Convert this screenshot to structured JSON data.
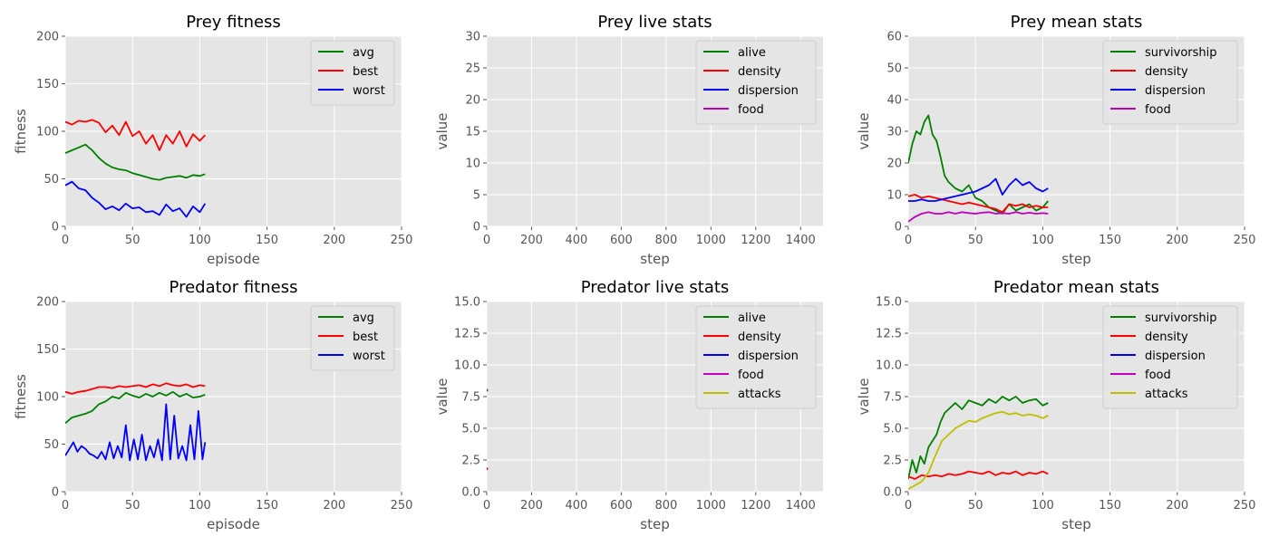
{
  "figure": {
    "background": "#ffffff",
    "plot_background": "#e5e5e5",
    "grid_color": "#ffffff",
    "tick_text_color": "#555555",
    "label_color": "#555555",
    "title_color": "#000000",
    "legend_background": "#e5e5e5",
    "legend_border": "#cccccc"
  },
  "chart_data": [
    {
      "id": "prey-fitness",
      "type": "line",
      "title": "Prey fitness",
      "xlabel": "episode",
      "ylabel": "fitness",
      "xlim": [
        0,
        250
      ],
      "ylim": [
        0,
        200
      ],
      "xticks": [
        "0",
        "50",
        "100",
        "150",
        "200",
        "250"
      ],
      "yticks": [
        "0",
        "50",
        "100",
        "150",
        "200"
      ],
      "grid": true,
      "legend": "top-right",
      "series": [
        {
          "name": "avg",
          "color": "#008000",
          "x": [
            0,
            5,
            10,
            15,
            20,
            25,
            30,
            35,
            40,
            45,
            50,
            55,
            60,
            65,
            70,
            75,
            80,
            85,
            90,
            95,
            100,
            104
          ],
          "y": [
            77,
            80,
            83,
            86,
            80,
            72,
            66,
            62,
            60,
            59,
            56,
            54,
            52,
            50,
            49,
            51,
            52,
            53,
            51,
            54,
            53,
            55
          ]
        },
        {
          "name": "best",
          "color": "#ff0000",
          "x": [
            0,
            5,
            10,
            15,
            20,
            25,
            30,
            35,
            40,
            45,
            50,
            55,
            60,
            65,
            70,
            75,
            80,
            85,
            90,
            95,
            100,
            104
          ],
          "y": [
            110,
            107,
            111,
            110,
            112,
            109,
            99,
            106,
            96,
            110,
            95,
            100,
            87,
            96,
            80,
            96,
            87,
            100,
            84,
            97,
            90,
            96
          ]
        },
        {
          "name": "worst",
          "color": "#0000ff",
          "x": [
            0,
            5,
            10,
            15,
            20,
            25,
            30,
            35,
            40,
            45,
            50,
            55,
            60,
            65,
            70,
            75,
            80,
            85,
            90,
            95,
            100,
            104
          ],
          "y": [
            43,
            47,
            40,
            38,
            30,
            25,
            18,
            21,
            17,
            24,
            19,
            20,
            15,
            16,
            12,
            23,
            16,
            19,
            10,
            21,
            15,
            24
          ]
        }
      ]
    },
    {
      "id": "prey-live-stats",
      "type": "line",
      "title": "Prey live stats",
      "xlabel": "step",
      "ylabel": "value",
      "xlim": [
        0,
        1500
      ],
      "ylim": [
        0,
        30
      ],
      "xticks": [
        "0",
        "200",
        "400",
        "600",
        "800",
        "1000",
        "1200",
        "1400"
      ],
      "yticks": [
        "0",
        "5",
        "10",
        "15",
        "20",
        "25",
        "30"
      ],
      "grid": true,
      "legend": "top-right",
      "series": [
        {
          "name": "alive",
          "color": "#008000",
          "x": [],
          "y": []
        },
        {
          "name": "density",
          "color": "#ff0000",
          "x": [],
          "y": []
        },
        {
          "name": "dispersion",
          "color": "#0000ff",
          "x": [],
          "y": []
        },
        {
          "name": "food",
          "color": "#bf00bf",
          "x": [],
          "y": []
        }
      ]
    },
    {
      "id": "prey-mean-stats",
      "type": "line",
      "title": "Prey mean stats",
      "xlabel": "step",
      "ylabel": "value",
      "xlim": [
        0,
        250
      ],
      "ylim": [
        0,
        60
      ],
      "xticks": [
        "0",
        "50",
        "100",
        "150",
        "200",
        "250"
      ],
      "yticks": [
        "0",
        "10",
        "20",
        "30",
        "40",
        "50",
        "60"
      ],
      "grid": true,
      "legend": "top-right",
      "series": [
        {
          "name": "survivorship",
          "color": "#008000",
          "x": [
            0,
            3,
            6,
            9,
            12,
            15,
            18,
            21,
            24,
            27,
            30,
            35,
            40,
            45,
            50,
            55,
            60,
            65,
            70,
            75,
            80,
            85,
            90,
            95,
            100,
            104
          ],
          "y": [
            20,
            26,
            30,
            29,
            33,
            35,
            29,
            27,
            22,
            16,
            14,
            12,
            11,
            13,
            9,
            8,
            6,
            5,
            4,
            7,
            5,
            6,
            7,
            5,
            6,
            8
          ]
        },
        {
          "name": "density",
          "color": "#ff0000",
          "x": [
            0,
            5,
            10,
            15,
            20,
            25,
            30,
            35,
            40,
            45,
            50,
            55,
            60,
            65,
            70,
            75,
            80,
            85,
            90,
            95,
            100,
            104
          ],
          "y": [
            9.5,
            10,
            9,
            9.5,
            9,
            8.5,
            8,
            7.5,
            7,
            7.5,
            7,
            6.5,
            6,
            5.5,
            4.5,
            7,
            6.5,
            7,
            6,
            6.5,
            6,
            6
          ]
        },
        {
          "name": "dispersion",
          "color": "#0000ff",
          "x": [
            0,
            5,
            10,
            15,
            20,
            25,
            30,
            35,
            40,
            45,
            50,
            55,
            60,
            65,
            70,
            75,
            80,
            85,
            90,
            95,
            100,
            104
          ],
          "y": [
            8,
            8,
            8.5,
            8,
            8,
            8.5,
            9,
            9.5,
            10,
            10.5,
            11,
            12,
            13,
            15,
            10,
            13,
            15,
            13,
            14,
            12,
            11,
            12
          ]
        },
        {
          "name": "food",
          "color": "#bf00bf",
          "x": [
            0,
            5,
            10,
            15,
            20,
            25,
            30,
            35,
            40,
            45,
            50,
            55,
            60,
            65,
            70,
            75,
            80,
            85,
            90,
            95,
            100,
            104
          ],
          "y": [
            1.5,
            3,
            4,
            4.5,
            4,
            4,
            4.5,
            4,
            4.5,
            4.2,
            4,
            4.3,
            4.5,
            4,
            4.2,
            4,
            4.5,
            4,
            4.3,
            4,
            4.2,
            4
          ]
        }
      ]
    },
    {
      "id": "predator-fitness",
      "type": "line",
      "title": "Predator fitness",
      "xlabel": "episode",
      "ylabel": "fitness",
      "xlim": [
        0,
        250
      ],
      "ylim": [
        0,
        200
      ],
      "xticks": [
        "0",
        "50",
        "100",
        "150",
        "200",
        "250"
      ],
      "yticks": [
        "0",
        "50",
        "100",
        "150",
        "200"
      ],
      "grid": true,
      "legend": "top-right",
      "series": [
        {
          "name": "avg",
          "color": "#008000",
          "x": [
            0,
            5,
            10,
            15,
            20,
            25,
            30,
            35,
            40,
            45,
            50,
            55,
            60,
            65,
            70,
            75,
            80,
            85,
            90,
            95,
            100,
            104
          ],
          "y": [
            72,
            78,
            80,
            82,
            85,
            92,
            95,
            100,
            98,
            104,
            101,
            99,
            103,
            100,
            104,
            101,
            105,
            100,
            103,
            99,
            100,
            102
          ]
        },
        {
          "name": "best",
          "color": "#ff0000",
          "x": [
            0,
            5,
            10,
            15,
            20,
            25,
            30,
            35,
            40,
            45,
            50,
            55,
            60,
            65,
            70,
            75,
            80,
            85,
            90,
            95,
            100,
            104
          ],
          "y": [
            105,
            103,
            105,
            106,
            108,
            110,
            110,
            109,
            111,
            110,
            111,
            112,
            110,
            113,
            111,
            114,
            112,
            111,
            113,
            110,
            112,
            111
          ]
        },
        {
          "name": "worst",
          "color": "#0000ff",
          "x": [
            0,
            3,
            6,
            9,
            12,
            15,
            18,
            21,
            24,
            27,
            30,
            33,
            36,
            39,
            42,
            45,
            48,
            51,
            54,
            57,
            60,
            63,
            66,
            69,
            72,
            75,
            78,
            81,
            84,
            87,
            90,
            93,
            96,
            99,
            102,
            104
          ],
          "y": [
            38,
            45,
            52,
            42,
            48,
            45,
            40,
            38,
            35,
            42,
            34,
            52,
            35,
            48,
            36,
            70,
            33,
            55,
            34,
            60,
            33,
            48,
            36,
            55,
            33,
            92,
            34,
            80,
            35,
            48,
            33,
            70,
            34,
            85,
            34,
            52
          ]
        }
      ]
    },
    {
      "id": "predator-live-stats",
      "type": "line",
      "title": "Predator live stats",
      "xlabel": "step",
      "ylabel": "value",
      "xlim": [
        0,
        1500
      ],
      "ylim": [
        0,
        15
      ],
      "xticks": [
        "0",
        "200",
        "400",
        "600",
        "800",
        "1000",
        "1200",
        "1400"
      ],
      "yticks": [
        "0.0",
        "2.5",
        "5.0",
        "7.5",
        "10.0",
        "12.5",
        "15.0"
      ],
      "grid": true,
      "legend": "top-right",
      "series": [
        {
          "name": "alive",
          "color": "#008000",
          "x": [
            0
          ],
          "y": [
            8
          ]
        },
        {
          "name": "density",
          "color": "#ff0000",
          "x": [
            0
          ],
          "y": [
            1.8
          ]
        },
        {
          "name": "dispersion",
          "color": "#0000ff",
          "x": [],
          "y": []
        },
        {
          "name": "food",
          "color": "#bf00bf",
          "x": [],
          "y": []
        },
        {
          "name": "attacks",
          "color": "#bfbf00",
          "x": [],
          "y": []
        }
      ]
    },
    {
      "id": "predator-mean-stats",
      "type": "line",
      "title": "Predator mean stats",
      "xlabel": "step",
      "ylabel": "value",
      "xlim": [
        0,
        250
      ],
      "ylim": [
        0,
        15
      ],
      "xticks": [
        "0",
        "50",
        "100",
        "150",
        "200",
        "250"
      ],
      "yticks": [
        "0.0",
        "2.5",
        "5.0",
        "7.5",
        "10.0",
        "12.5",
        "15.0"
      ],
      "grid": true,
      "legend": "top-right",
      "series": [
        {
          "name": "survivorship",
          "color": "#008000",
          "x": [
            0,
            3,
            6,
            9,
            12,
            15,
            18,
            21,
            24,
            27,
            30,
            35,
            40,
            45,
            50,
            55,
            60,
            65,
            70,
            75,
            80,
            85,
            90,
            95,
            100,
            104
          ],
          "y": [
            1,
            2.5,
            1.5,
            2.8,
            2.2,
            3.5,
            4,
            4.5,
            5.5,
            6.2,
            6.5,
            7,
            6.5,
            7.2,
            7,
            6.8,
            7.3,
            7,
            7.5,
            7.2,
            7.5,
            7,
            7.2,
            7.3,
            6.8,
            7
          ]
        },
        {
          "name": "density",
          "color": "#ff0000",
          "x": [
            0,
            5,
            10,
            15,
            20,
            25,
            30,
            35,
            40,
            45,
            50,
            55,
            60,
            65,
            70,
            75,
            80,
            85,
            90,
            95,
            100,
            104
          ],
          "y": [
            1.2,
            1,
            1.3,
            1.2,
            1.3,
            1.2,
            1.4,
            1.3,
            1.4,
            1.6,
            1.5,
            1.4,
            1.6,
            1.3,
            1.5,
            1.4,
            1.6,
            1.3,
            1.5,
            1.4,
            1.6,
            1.4
          ]
        },
        {
          "name": "dispersion",
          "color": "#0000ff",
          "x": [],
          "y": []
        },
        {
          "name": "food",
          "color": "#bf00bf",
          "x": [],
          "y": []
        },
        {
          "name": "attacks",
          "color": "#bfbf00",
          "x": [
            0,
            5,
            10,
            15,
            20,
            25,
            30,
            35,
            40,
            45,
            50,
            55,
            60,
            65,
            70,
            75,
            80,
            85,
            90,
            95,
            100,
            104
          ],
          "y": [
            0.2,
            0.5,
            0.8,
            1.5,
            2.8,
            4,
            4.5,
            5,
            5.3,
            5.6,
            5.5,
            5.8,
            6,
            6.2,
            6.3,
            6.1,
            6.2,
            6,
            6.1,
            6,
            5.8,
            6
          ]
        }
      ]
    }
  ]
}
